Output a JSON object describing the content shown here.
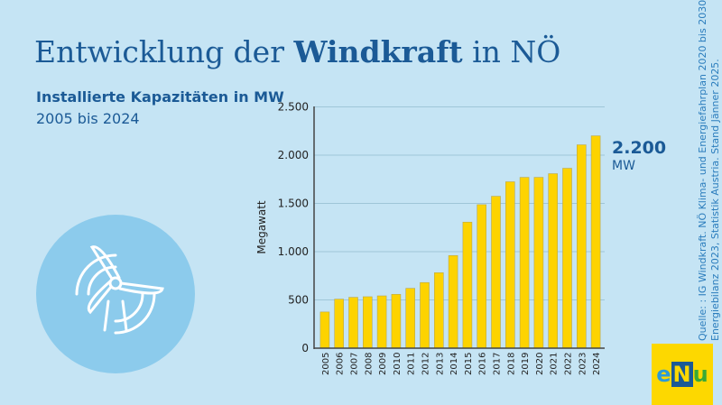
{
  "header": {
    "title_pre": "Entwicklung der ",
    "title_bold": "Windkraft",
    "title_post": " in NÖ",
    "subtitle": "Installierte Kapazitäten in MW",
    "period": "2005 bis 2024"
  },
  "annotation": {
    "value": "2.200",
    "unit": "MW"
  },
  "source": {
    "line1": "Quelle: : IG Windkraft. NÖ Klima- und Energiefahrplan 2020 bis 2030.",
    "line2": "Energiebilanz 2023, Statistik Austria. Stand Jänner 2025."
  },
  "logo": {
    "text": "eNu",
    "colors": {
      "background": "#fdd800",
      "e": "#2b9ad8",
      "N": "#1b5a96",
      "u": "#3aa935"
    }
  },
  "icon": "wind-turbine-icon",
  "chart_data": {
    "type": "bar",
    "title": "",
    "xlabel": "",
    "ylabel": "Megawatt",
    "ylim": [
      0,
      2500
    ],
    "yticks": [
      0,
      500,
      1000,
      1500,
      2000,
      2500
    ],
    "ytick_labels": [
      "0",
      "500",
      "1.000",
      "1.500",
      "2.000",
      "2.500"
    ],
    "grid": true,
    "bar_color": "#fdd300",
    "categories": [
      "2005",
      "2006",
      "2007",
      "2008",
      "2009",
      "2010",
      "2011",
      "2012",
      "2013",
      "2014",
      "2015",
      "2016",
      "2017",
      "2018",
      "2019",
      "2020",
      "2021",
      "2022",
      "2023",
      "2024"
    ],
    "values": [
      375,
      508,
      527,
      533,
      542,
      558,
      620,
      680,
      782,
      960,
      1306,
      1487,
      1574,
      1724,
      1770,
      1770,
      1808,
      1864,
      2107,
      2200
    ]
  }
}
